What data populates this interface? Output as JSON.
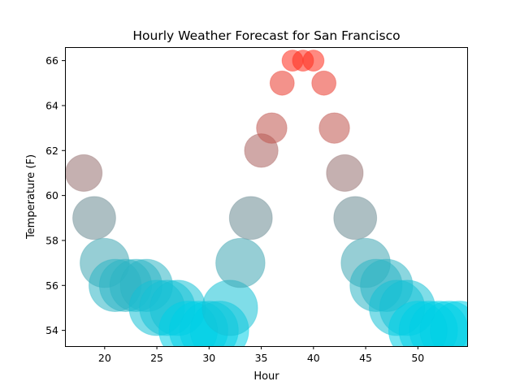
{
  "chart_data": {
    "type": "scatter",
    "title": "Hourly Weather Forecast for San Francisco",
    "xlabel": "Hour",
    "ylabel": "Temperature (F)",
    "xlim": [
      16.2,
      54.8
    ],
    "ylim": [
      53.3,
      66.6
    ],
    "xticks": [
      20,
      25,
      30,
      35,
      40,
      45,
      50
    ],
    "yticks": [
      54,
      56,
      58,
      60,
      62,
      64,
      66
    ],
    "grid": false,
    "marker_alpha": 0.55,
    "color_scale": {
      "cold_color": "#00cfe6",
      "hot_color": "#ff2a1a",
      "cold_temp": 54,
      "hot_temp": 66
    },
    "size_note": "marker size grows as temperature drops",
    "points": [
      {
        "x": 18,
        "y": 61
      },
      {
        "x": 19,
        "y": 59
      },
      {
        "x": 20,
        "y": 57
      },
      {
        "x": 21,
        "y": 56
      },
      {
        "x": 22,
        "y": 56
      },
      {
        "x": 23,
        "y": 56
      },
      {
        "x": 24,
        "y": 56
      },
      {
        "x": 25,
        "y": 55
      },
      {
        "x": 26,
        "y": 55
      },
      {
        "x": 27,
        "y": 55
      },
      {
        "x": 28,
        "y": 54
      },
      {
        "x": 29,
        "y": 54
      },
      {
        "x": 30,
        "y": 54
      },
      {
        "x": 31,
        "y": 54
      },
      {
        "x": 32,
        "y": 55
      },
      {
        "x": 33,
        "y": 57
      },
      {
        "x": 34,
        "y": 59
      },
      {
        "x": 35,
        "y": 62
      },
      {
        "x": 36,
        "y": 63
      },
      {
        "x": 37,
        "y": 65
      },
      {
        "x": 38,
        "y": 66
      },
      {
        "x": 39,
        "y": 66
      },
      {
        "x": 40,
        "y": 66
      },
      {
        "x": 41,
        "y": 65
      },
      {
        "x": 42,
        "y": 63
      },
      {
        "x": 43,
        "y": 61
      },
      {
        "x": 44,
        "y": 59
      },
      {
        "x": 45,
        "y": 57
      },
      {
        "x": 46,
        "y": 56
      },
      {
        "x": 47,
        "y": 56
      },
      {
        "x": 48,
        "y": 55
      },
      {
        "x": 49,
        "y": 55
      },
      {
        "x": 50,
        "y": 54
      },
      {
        "x": 51,
        "y": 54
      },
      {
        "x": 52,
        "y": 54
      },
      {
        "x": 53,
        "y": 54
      },
      {
        "x": 54,
        "y": 54
      }
    ]
  }
}
